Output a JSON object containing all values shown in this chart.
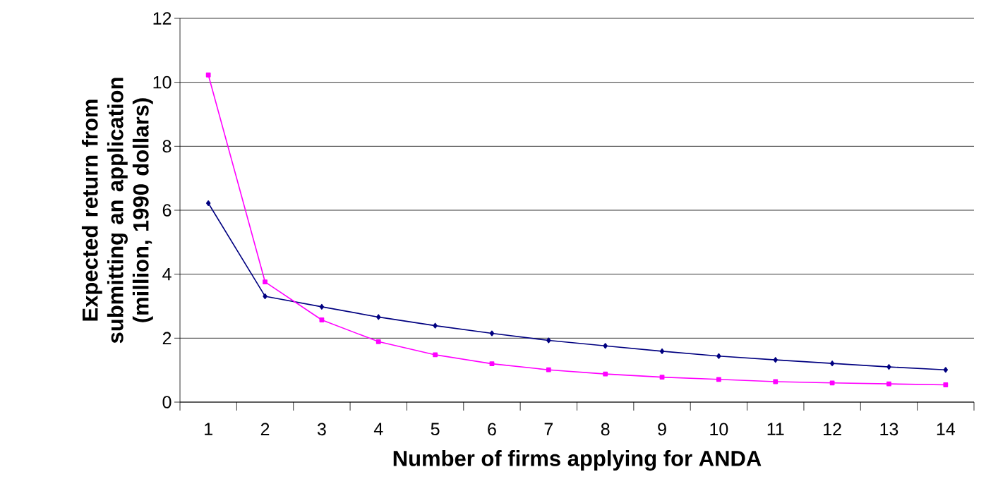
{
  "chart_data": {
    "type": "line",
    "xlabel": "Number of firms applying for ANDA",
    "ylabel": "Expected return from submitting an application (million, 1990 dollars)",
    "categories": [
      "1",
      "2",
      "3",
      "4",
      "5",
      "6",
      "7",
      "8",
      "9",
      "10",
      "11",
      "12",
      "13",
      "14"
    ],
    "series": [
      {
        "color": "#000080",
        "marker": "diamond",
        "values": [
          6.22,
          3.31,
          2.98,
          2.66,
          2.39,
          2.15,
          1.93,
          1.76,
          1.59,
          1.44,
          1.32,
          1.21,
          1.1,
          1.01
        ]
      },
      {
        "color": "#ff00ff",
        "marker": "square",
        "values": [
          10.23,
          3.76,
          2.57,
          1.89,
          1.48,
          1.2,
          1.01,
          0.88,
          0.78,
          0.71,
          0.64,
          0.6,
          0.57,
          0.54
        ]
      }
    ],
    "ylim": [
      0,
      12
    ],
    "yticks": [
      0,
      2,
      4,
      6,
      8,
      10,
      12
    ],
    "grid": "y"
  }
}
